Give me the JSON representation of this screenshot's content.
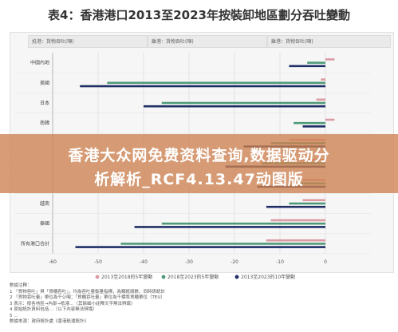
{
  "title": "表4：香港港口2013至2023年按裝卸地區劃分吞吐變動",
  "column_headers": [
    "抵港：貨物吞吐(噸)",
    "離港：貨物吞吐(噸)",
    "離港：貨物吞吐(噸)"
  ],
  "legend": [
    "2013至2018的5年變動",
    "2018至2023的5年變動",
    "2013至2023的10年變動"
  ],
  "notes": [
    "數據注釋：",
    "1 「貨物吞吐」與「貨櫃吞吐」，均為吞吐量衡量指標，為類統總數，同時係統計",
    "2 「貨物吞吐量」單位為千公噸；「貨櫃吞吐量」單位為千標準貨櫃單位（TEU）",
    "3 表示：按各地區→內部→抵港…（其餘細小註釋文字無法辨識）",
    "4 原始統計資料包括…（以下內容無法辨識）",
    "5 …",
    "數據來源：政府統計處《香港航運統計》"
  ],
  "watermark": {
    "line1": "香港大众网免费资料查询,数据驱动分",
    "line2": "析解析_RCF4.13.47动图版"
  },
  "colors": {
    "series1": "#dc9aa3",
    "series2": "#4e9a78",
    "series3": "#1f2f66",
    "grid": "#d7d7d7",
    "watermark_band": "#cd8250"
  },
  "chart_data": {
    "type": "bar",
    "orientation": "horizontal",
    "title": "表4：香港港口2013至2023年按裝卸地區劃分吞吐變動",
    "categories": [
      "中國內地",
      "美國",
      "日本",
      "南韓",
      "",
      "",
      "",
      "越南",
      "泰國",
      "所有港口合計"
    ],
    "series": [
      {
        "name": "2013至2018的5年變動",
        "values": [
          2,
          -1,
          -2,
          2,
          -8,
          -10,
          -5,
          -5,
          -12,
          -13
        ]
      },
      {
        "name": "2018至2023的5年變動",
        "values": [
          -4,
          -48,
          -36,
          -7,
          -12,
          -14,
          -6,
          -8,
          -36,
          -45
        ]
      },
      {
        "name": "2013至2023的10年變動",
        "values": [
          -8,
          -54,
          -40,
          -5,
          -18,
          -22,
          -15,
          -13,
          -42,
          -55
        ]
      }
    ],
    "xlim": [
      -60,
      10
    ],
    "xticks": [
      "-60",
      "-50",
      "-40",
      "-30",
      "-20",
      "-10",
      "0"
    ],
    "grid": true,
    "legend_position": "bottom"
  }
}
